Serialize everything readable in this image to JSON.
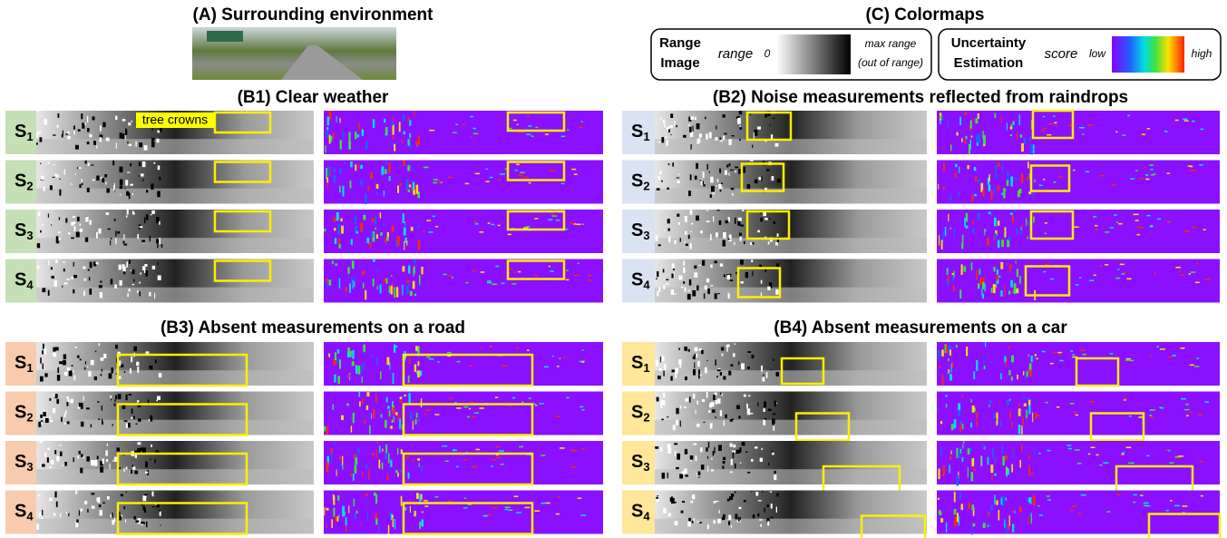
{
  "panel_a": {
    "title": "(A) Surrounding environment"
  },
  "panel_c": {
    "title": "(C) Colormaps",
    "range": {
      "label_1": "Range",
      "label_2": "Image",
      "name": "range",
      "low": "0",
      "high_1": "max range",
      "high_2": "(out of range)"
    },
    "uncertainty": {
      "label_1": "Uncertainty",
      "label_2": "Estimation",
      "name": "score",
      "low": "low",
      "high": "high"
    }
  },
  "panels": [
    {
      "title": "(B1) Clear weather",
      "annotation": "tree crowns",
      "rows": [
        {
          "main": "S",
          "sub": "1"
        },
        {
          "main": "S",
          "sub": "2"
        },
        {
          "main": "S",
          "sub": "3"
        },
        {
          "main": "S",
          "sub": "4"
        }
      ]
    },
    {
      "title": "(B2) Noise measurements reflected from raindrops",
      "rows": [
        {
          "main": "S",
          "sub": "1"
        },
        {
          "main": "S",
          "sub": "2"
        },
        {
          "main": "S",
          "sub": "3"
        },
        {
          "main": "S",
          "sub": "4"
        }
      ]
    },
    {
      "title": "(B3) Absent measurements on a road",
      "rows": [
        {
          "main": "S",
          "sub": "1"
        },
        {
          "main": "S",
          "sub": "2"
        },
        {
          "main": "S",
          "sub": "3"
        },
        {
          "main": "S",
          "sub": "4"
        }
      ]
    },
    {
      "title": "(B4) Absent measurements on a car",
      "rows": [
        {
          "main": "S",
          "sub": "1"
        },
        {
          "main": "S",
          "sub": "2"
        },
        {
          "main": "S",
          "sub": "3"
        },
        {
          "main": "S",
          "sub": "4"
        }
      ]
    }
  ]
}
